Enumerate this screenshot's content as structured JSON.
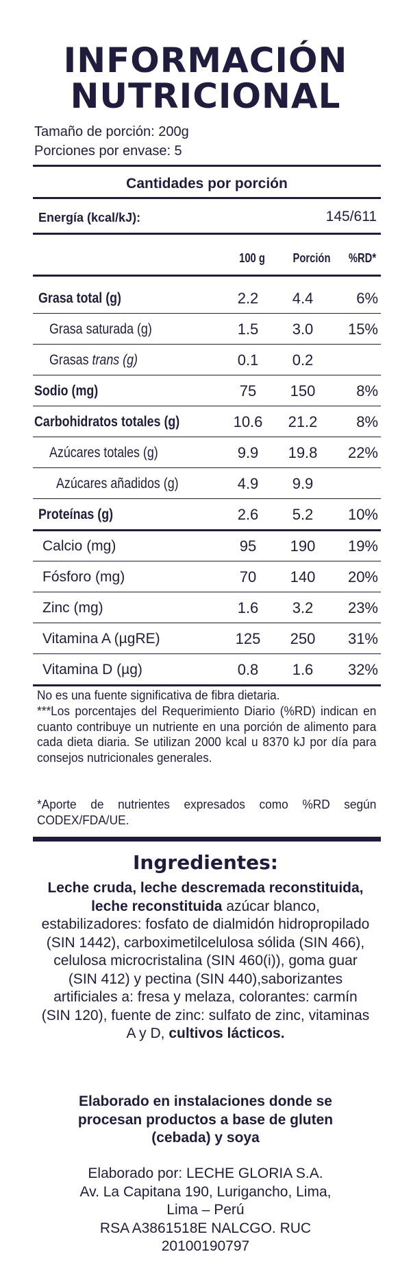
{
  "title": {
    "line1": "INFORMACIÓN",
    "line2": "NUTRICIONAL"
  },
  "serving": {
    "size": "Tamaño de porción: 200g",
    "per_container": "Porciones por envase: 5"
  },
  "amounts_heading": "Cantidades por porción",
  "energy": {
    "label": "Energía (kcal/kJ):",
    "value": "145/611"
  },
  "columns": [
    "100 g",
    "Porción",
    "%RD*"
  ],
  "rows": [
    {
      "label": "Grasa total (g)",
      "v100": "2.2",
      "portion": "4.4",
      "rd": "6%"
    },
    {
      "label": "Grasa saturada (g)",
      "v100": "1.5",
      "portion": "3.0",
      "rd": "15%"
    },
    {
      "label_prefix": "Grasas ",
      "label_italic": "trans (g)",
      "v100": "0.1",
      "portion": "0.2",
      "rd": ""
    },
    {
      "label": "Sodio (mg)",
      "v100": "75",
      "portion": "150",
      "rd": "8%"
    },
    {
      "label": "Carbohidratos totales (g)",
      "v100": "10.6",
      "portion": "21.2",
      "rd": "8%"
    },
    {
      "label": "Azúcares totales (g)",
      "v100": "9.9",
      "portion": "19.8",
      "rd": "22%"
    },
    {
      "label": "Azúcares añadidos (g)",
      "v100": "4.9",
      "portion": "9.9",
      "rd": ""
    },
    {
      "label": "Proteínas (g)",
      "v100": "2.6",
      "portion": "5.2",
      "rd": "10%"
    },
    {
      "label": "Calcio (mg)",
      "v100": "95",
      "portion": "190",
      "rd": "19%"
    },
    {
      "label": "Fósforo (mg)",
      "v100": "70",
      "portion": "140",
      "rd": "20%"
    },
    {
      "label": "Zinc (mg)",
      "v100": "1.6",
      "portion": "3.2",
      "rd": "23%"
    },
    {
      "label": "Vitamina A (µgRE)",
      "v100": "125",
      "portion": "250",
      "rd": "31%"
    },
    {
      "label": "Vitamina D (µg)",
      "v100": "0.8",
      "portion": "1.6",
      "rd": "32%"
    }
  ],
  "footnotes": {
    "fiber": "No es una fuente significativa de fibra dietaria.",
    "rd_note": "***Los porcentajes del Requerimiento Diario (%RD) indican en cuanto contribuye un nutriente en una porción de alimento para cada dieta diaria. Se utilizan 2000 kcal u 8370 kJ por día para consejos nutricionales generales.",
    "codex": "*Aporte de nutrientes expresados como %RD según CODEX/FDA/UE."
  },
  "ingredients": {
    "title": "Ingredientes:",
    "bold_start": "Leche cruda, leche descremada reconstituida, leche reconstituida",
    "body": " azúcar blanco, estabilizadores: fosfato de dialmidón hidropropilado (SIN 1442), carboximetilcelulosa sólida (SIN 466), celulosa microcristalina (SIN 460(i)), goma guar (SIN 412) y pectina (SIN 440),saborizantes artificiales a: fresa y melaza, colorantes: carmín (SIN 120), fuente de zinc: sulfato de zinc, vitaminas A y D, ",
    "bold_end": "cultivos lácticos."
  },
  "allergen": "Elaborado en instalaciones donde se procesan productos a base de gluten (cebada) y soya",
  "manufacturer": {
    "line1": "Elaborado por: LECHE GLORIA S.A.",
    "line2": "Av. La Capitana 190, Lurigancho, Lima,",
    "line3": "Lima – Perú",
    "line4": "RSA A3861518E NALCGO. RUC",
    "line5": "20100190797"
  }
}
